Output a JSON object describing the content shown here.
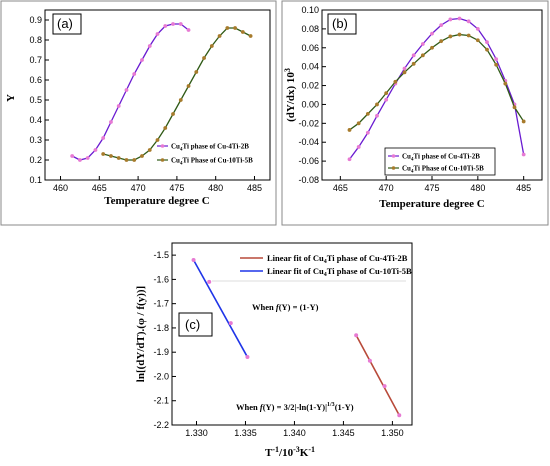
{
  "chart_data": [
    {
      "panel": "(a)",
      "type": "line",
      "xlabel": "Temperature degree C",
      "ylabel": "Y",
      "xlim": [
        458,
        487
      ],
      "ylim": [
        0.1,
        0.95
      ],
      "x_ticks": [
        "460",
        "465",
        "470",
        "475",
        "480",
        "485"
      ],
      "y_ticks": [
        "0.1",
        "0.2",
        "0.3",
        "0.4",
        "0.5",
        "0.6",
        "0.7",
        "0.8",
        "0.9"
      ],
      "legend_position": "bottom-right",
      "series": [
        {
          "name": "Cu4Ti phase of Cu-4Ti-2B",
          "color": "#6a1bd1",
          "marker": "#e77ad3",
          "x": [
            461.5,
            462.5,
            463.5,
            464.5,
            465.5,
            466.5,
            467.5,
            468.5,
            469.5,
            470.5,
            471.5,
            472.5,
            473.5,
            474.5,
            475.5,
            476.5
          ],
          "y": [
            0.22,
            0.2,
            0.21,
            0.25,
            0.31,
            0.39,
            0.47,
            0.55,
            0.63,
            0.7,
            0.77,
            0.83,
            0.87,
            0.88,
            0.88,
            0.85
          ]
        },
        {
          "name": "Cu4Ti Phase of Cu-10Ti-5B",
          "color": "#2f5a16",
          "marker": "#a77b2c",
          "x": [
            465.5,
            466.5,
            467.5,
            468.5,
            469.5,
            470.5,
            471.5,
            472.5,
            473.5,
            474.5,
            475.5,
            476.5,
            477.5,
            478.5,
            479.5,
            480.5,
            481.5,
            482.5,
            483.5,
            484.5
          ],
          "y": [
            0.23,
            0.22,
            0.21,
            0.2,
            0.2,
            0.22,
            0.25,
            0.3,
            0.36,
            0.43,
            0.5,
            0.57,
            0.64,
            0.71,
            0.77,
            0.82,
            0.86,
            0.86,
            0.84,
            0.82
          ]
        }
      ]
    },
    {
      "panel": "(b)",
      "type": "line",
      "xlabel": "Temperature degree C",
      "ylabel": "(dY/dx) 10³",
      "xlim": [
        463,
        487
      ],
      "ylim": [
        -0.08,
        0.1
      ],
      "x_ticks": [
        "465",
        "470",
        "475",
        "480",
        "485"
      ],
      "y_ticks": [
        "-0.08",
        "-0.06",
        "-0.04",
        "-0.02",
        "0.00",
        "0.02",
        "0.04",
        "0.06",
        "0.08",
        "0.10"
      ],
      "legend_position": "bottom-center",
      "series": [
        {
          "name": "Cu4Ti phase of Cu-4Ti-2B",
          "color": "#6a1bd1",
          "marker": "#e77ad3",
          "x": [
            466,
            467,
            468,
            469,
            470,
            471,
            472,
            473,
            474,
            475,
            476,
            477,
            478,
            479,
            480,
            481,
            482,
            483,
            484,
            485
          ],
          "y": [
            -0.058,
            -0.045,
            -0.03,
            -0.012,
            0.005,
            0.022,
            0.038,
            0.052,
            0.064,
            0.075,
            0.084,
            0.09,
            0.091,
            0.088,
            0.08,
            0.066,
            0.048,
            0.025,
            0.0,
            -0.053
          ]
        },
        {
          "name": "Cu4Ti Phase of Cu-10Ti-5B",
          "color": "#2f5a16",
          "marker": "#a77b2c",
          "x": [
            466,
            467,
            468,
            469,
            470,
            471,
            472,
            473,
            474,
            475,
            476,
            477,
            478,
            479,
            480,
            481,
            482,
            483,
            484,
            485
          ],
          "y": [
            -0.027,
            -0.02,
            -0.01,
            0.0,
            0.012,
            0.024,
            0.034,
            0.043,
            0.052,
            0.06,
            0.067,
            0.072,
            0.074,
            0.073,
            0.068,
            0.058,
            0.042,
            0.022,
            -0.003,
            -0.018
          ]
        }
      ]
    },
    {
      "panel": "(c)",
      "type": "scatter",
      "xlabel": "T⁻¹/10⁻³K⁻¹",
      "ylabel": "ln[(dY/dT).(φ/f(y))]",
      "xlim": [
        1.3275,
        1.352
      ],
      "ylim": [
        -2.2,
        -1.45
      ],
      "x_ticks": [
        "1.330",
        "1.335",
        "1.340",
        "1.345",
        "1.350"
      ],
      "y_ticks": [
        "-1.5",
        "-1.6",
        "-1.7",
        "-1.8",
        "-1.9",
        "-2.0",
        "-2.1",
        "-2.2"
      ],
      "legend_position": "top-right",
      "series": [
        {
          "name": "Linear fit of Cu4Ti phase of Cu-4Ti-2B",
          "color": "#b84a3a",
          "marker": "#e77ad3",
          "x": [
            1.3463,
            1.3477,
            1.3492,
            1.3507
          ],
          "y": [
            -1.83,
            -1.935,
            -2.04,
            -2.16
          ]
        },
        {
          "name": "Linear fit of Cu4Ti phase of Cu-10Ti-5B",
          "color": "#1f35e8",
          "marker": "#e77ad3",
          "x": [
            1.3297,
            1.3313,
            1.3335,
            1.3352
          ],
          "y": [
            -1.52,
            -1.61,
            -1.78,
            -1.92
          ]
        }
      ],
      "annotations": [
        "When f(Y) = (1-Y)",
        "When f(Y) = 3/2|-ln(1-Y)|¹ᐟ³(1-Y)"
      ]
    }
  ],
  "labels": {
    "a_tag": "(a)",
    "b_tag": "(b)",
    "c_tag": "(c)",
    "a_xlabel": "Temperature degree C",
    "b_xlabel": "Temperature degree C",
    "a_ylabel": "Y",
    "b_ylabel": "(dY/dx) 10",
    "b_ylabel_sup": "3",
    "a_leg1": "Cu",
    "a_leg1_sub": "4",
    "a_leg1_rest": "Ti phase of Cu-4Ti-2B",
    "a_leg2": "Cu",
    "a_leg2_sub": "4",
    "a_leg2_rest": "Ti Phase of Cu-10Ti-5B",
    "b_leg1": "Cu",
    "b_leg1_sub": "4",
    "b_leg1_rest": "Ti phase of Cu-4Ti-2B",
    "b_leg2": "Cu",
    "b_leg2_sub": "4",
    "b_leg2_rest": "Ti Phase of Cu-10Ti-5B",
    "c_leg1": "Linear fit of Cu",
    "c_leg1_sub": "4",
    "c_leg1_rest": "Ti phase of Cu-4Ti-2B",
    "c_leg2": "Linear fit of Cu",
    "c_leg2_sub": "4",
    "c_leg2_rest": "Ti phase of Cu-10Ti-5B",
    "c_annot1_pre": "When ",
    "c_annot1_f": "f",
    "c_annot1_rest": "(Y) = (1-Y)",
    "c_annot2_pre": "When ",
    "c_annot2_f": "f",
    "c_annot2_mid": "(Y) = 3/2|-ln(1-Y)|",
    "c_annot2_sup": "1/3",
    "c_annot2_rest": "(1-Y)",
    "c_xlabel_pre": "T",
    "c_xlabel_sup1": "-1",
    "c_xlabel_mid": "/10",
    "c_xlabel_sup2": "-3",
    "c_xlabel_k": "K",
    "c_xlabel_sup3": "-1",
    "c_ylabel": "ln[(dY/dT).(φ / f(y))]"
  }
}
